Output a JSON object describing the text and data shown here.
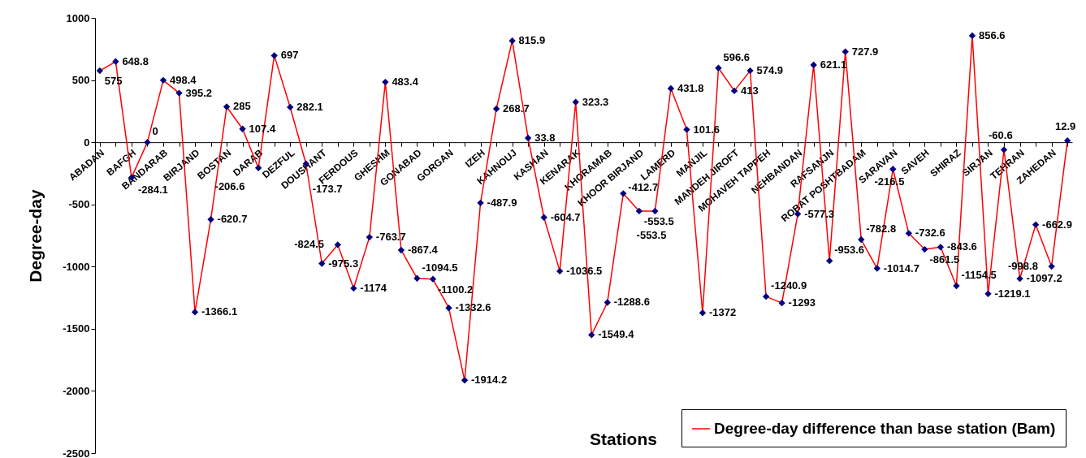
{
  "chart_data": {
    "type": "line",
    "xlabel": "Stations",
    "ylabel": "Degree-day",
    "categories": [
      "ABADAN",
      null,
      "BAFGH",
      null,
      "BANDARAB",
      null,
      "BIRJAND",
      null,
      "BOSTAN",
      null,
      "DARAB",
      null,
      "DEZFUL",
      null,
      "DOUSHANT",
      null,
      "FERDOUS",
      null,
      "GHESHM",
      null,
      "GONABAD",
      null,
      "GORGAN",
      null,
      "IZEH",
      null,
      "KAHNOUJ",
      null,
      "KASHAN",
      null,
      "KENARAK",
      null,
      "KHORAMAB",
      null,
      "KHOOR BIRJAND",
      null,
      "LAMERD",
      null,
      "MANJIL",
      null,
      "MANDEH JIROFT",
      null,
      "MOHAVEH TAPPEH",
      null,
      "NEHBANDAN",
      null,
      "RAFSANJN",
      null,
      "ROBAT POSHTBADAM",
      null,
      "SARAVAN",
      null,
      "SAVEH",
      null,
      "SHIRAZ",
      null,
      "SIRJAN",
      null,
      "TEHRAN",
      null,
      "ZAHEDAN",
      null
    ],
    "series": [
      {
        "name": "Degree-day difference than base station (Bam)",
        "color": "#ff0000",
        "values": [
          575,
          648.8,
          -284.1,
          0,
          498.4,
          395.2,
          -1366.1,
          -620.7,
          285,
          107.4,
          -206.6,
          697,
          282.1,
          -173.7,
          -975.3,
          -824.5,
          -1174,
          -763.7,
          483.4,
          -867.4,
          -1094.5,
          -1100.2,
          -1332.6,
          -1914.2,
          -487.9,
          268.7,
          815.9,
          33.8,
          -604.7,
          -1036.5,
          323.3,
          -1549.4,
          -1288.6,
          -412.7,
          -553.5,
          -553.5,
          431.8,
          101.6,
          -1372,
          596.6,
          413,
          574.9,
          -1240.9,
          -1293,
          -577.3,
          621.1,
          -953.6,
          727.9,
          -782.8,
          -1014.7,
          -216.5,
          -732.6,
          -861.5,
          -843.6,
          -1154.5,
          856.6,
          -1219.1,
          -60.6,
          -1097.2,
          -662.9,
          -998.8,
          12.9
        ]
      }
    ],
    "ylim": [
      -2500,
      1000
    ],
    "yticks": [
      -2500,
      -2000,
      -1500,
      -1000,
      -500,
      0,
      500,
      1000
    ],
    "marker": "diamond",
    "data_labels": true,
    "legend": "bottom right",
    "grid": false
  }
}
